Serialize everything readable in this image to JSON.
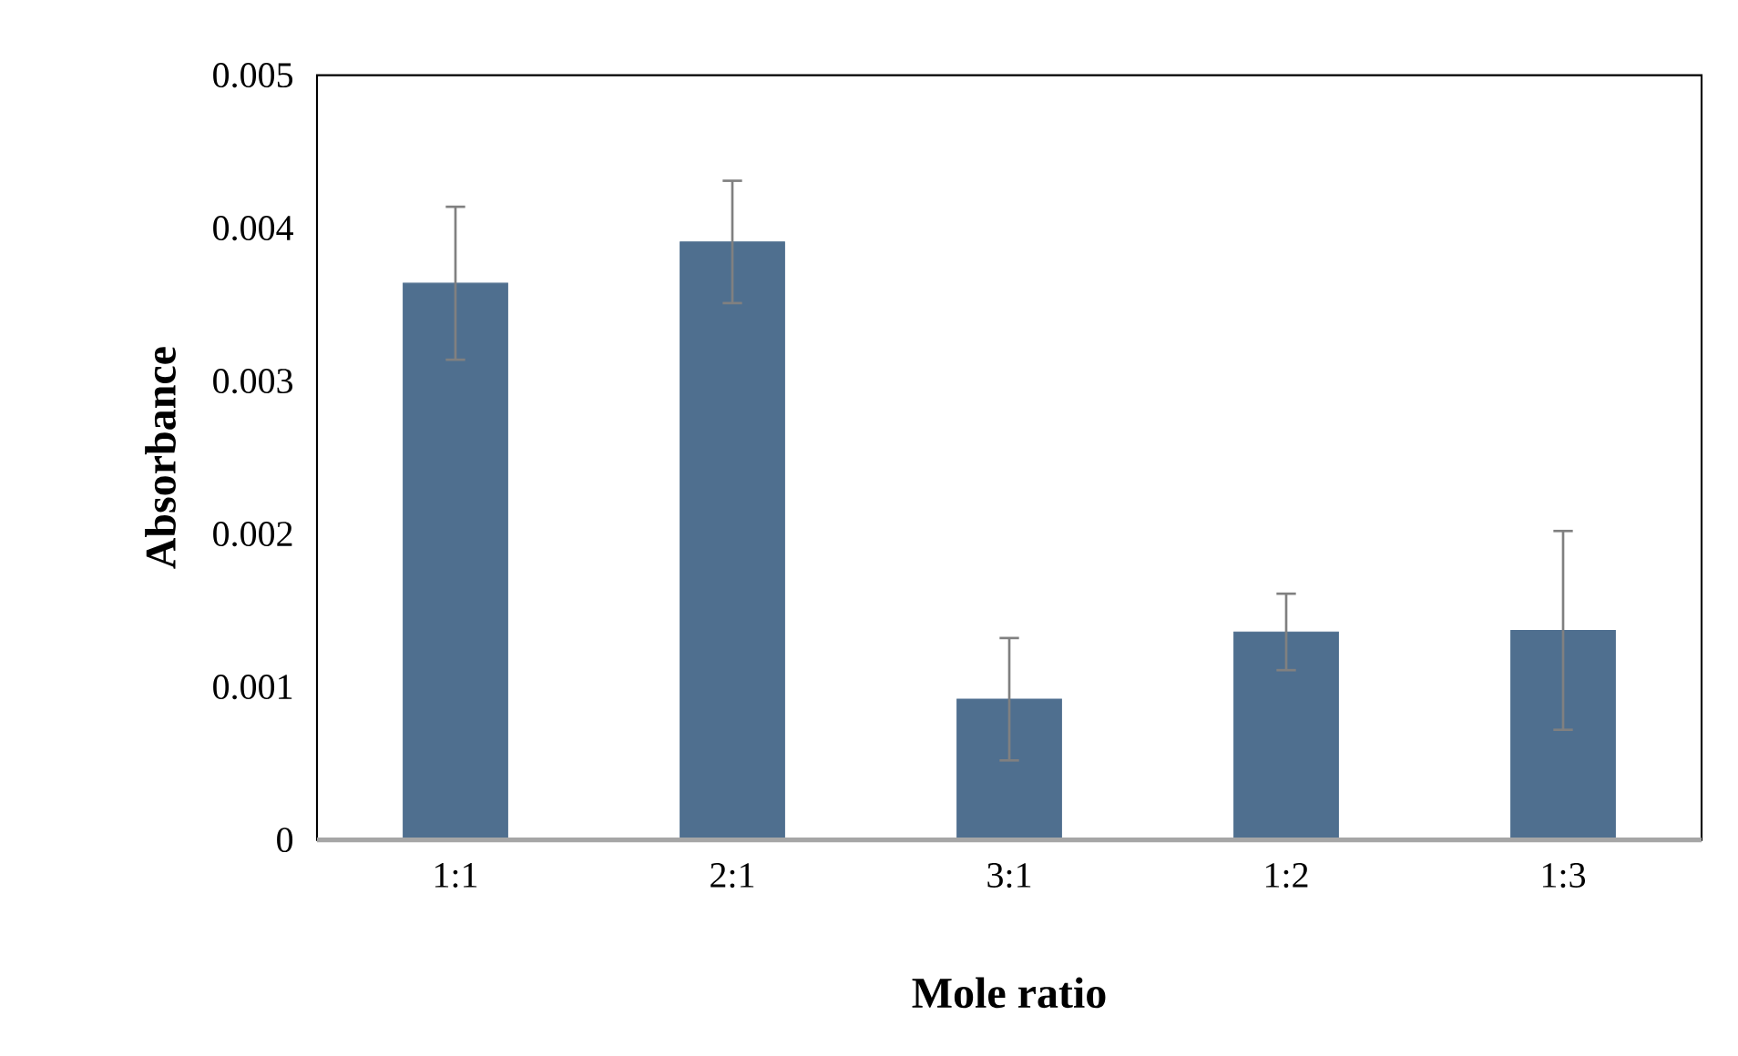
{
  "chart_data": {
    "type": "bar",
    "xlabel": "Mole ratio",
    "ylabel": "Absorbance",
    "categories": [
      "1:1",
      "2:1",
      "3:1",
      "1:2",
      "1:3"
    ],
    "values": [
      0.00364,
      0.00391,
      0.00092,
      0.00136,
      0.00137
    ],
    "errors": [
      0.0005,
      0.0004,
      0.0004,
      0.00025,
      0.00065
    ],
    "color": "#4f6f8f",
    "ylim": [
      0,
      0.005
    ],
    "yticks": [
      {
        "value": 0,
        "label": "0"
      },
      {
        "value": 0.001,
        "label": "0.001"
      },
      {
        "value": 0.002,
        "label": "0.002"
      },
      {
        "value": 0.003,
        "label": "0.003"
      },
      {
        "value": 0.004,
        "label": "0.004"
      },
      {
        "value": 0.005,
        "label": "0.005"
      }
    ],
    "grid": false
  }
}
